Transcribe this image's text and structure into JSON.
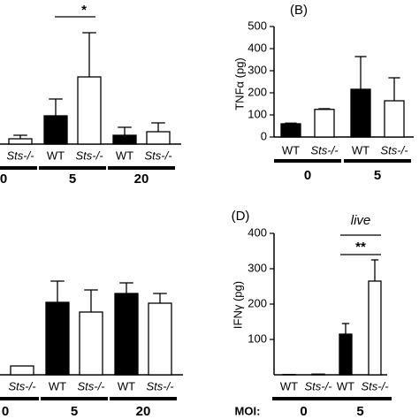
{
  "chart_data": [
    {
      "type": "bar",
      "categories": [
        "0",
        "5",
        "20"
      ],
      "series": [
        {
          "name": "WT",
          "color": "#000000",
          "values": [
            null,
            32,
            10
          ],
          "errors": [
            null,
            19,
            9
          ]
        },
        {
          "name": "Sts-/-",
          "color": "#ffffff",
          "values": [
            6,
            76,
            14
          ],
          "errors": [
            4,
            50,
            10
          ]
        }
      ],
      "ylim": [
        0,
        150
      ],
      "annotations": [
        {
          "text": "*"
        }
      ]
    },
    {
      "type": "bar",
      "panel_label": "(B)",
      "y_label": "TNFα (pg)",
      "categories": [
        "0",
        "5"
      ],
      "series": [
        {
          "name": "WT",
          "color": "#000000",
          "values": [
            60,
            216
          ],
          "errors": [
            3,
            148
          ]
        },
        {
          "name": "Sts-/-",
          "color": "#ffffff",
          "values": [
            125,
            164
          ],
          "errors": [
            3,
            104
          ]
        }
      ],
      "ylim": [
        0,
        500
      ],
      "yticks": [
        0,
        100,
        200,
        300,
        400,
        500
      ]
    },
    {
      "type": "bar",
      "categories": [
        "0",
        "5",
        "20"
      ],
      "series": [
        {
          "name": "WT",
          "color": "#000000",
          "values": [
            null,
            82,
            92
          ],
          "errors": [
            null,
            24,
            12
          ]
        },
        {
          "name": "Sts-/-",
          "color": "#ffffff",
          "values": [
            10,
            71,
            81
          ],
          "errors": [
            null,
            25,
            11
          ]
        }
      ],
      "ylim": [
        0,
        150
      ]
    },
    {
      "type": "bar",
      "panel_label": "(D)",
      "y_label": "IFNγ (pg)",
      "x_label": "MOI:",
      "categories": [
        "0",
        "5"
      ],
      "series": [
        {
          "name": "WT",
          "color": "#000000",
          "values": [
            1,
            115
          ],
          "errors": [
            null,
            30
          ]
        },
        {
          "name": "Sts-/-",
          "color": "#ffffff",
          "values": [
            2,
            265
          ],
          "errors": [
            null,
            60
          ]
        }
      ],
      "ylim": [
        0,
        400
      ],
      "yticks": [
        100,
        200,
        300,
        400
      ],
      "annotations": [
        {
          "text": "live"
        },
        {
          "text": "**"
        }
      ]
    }
  ]
}
